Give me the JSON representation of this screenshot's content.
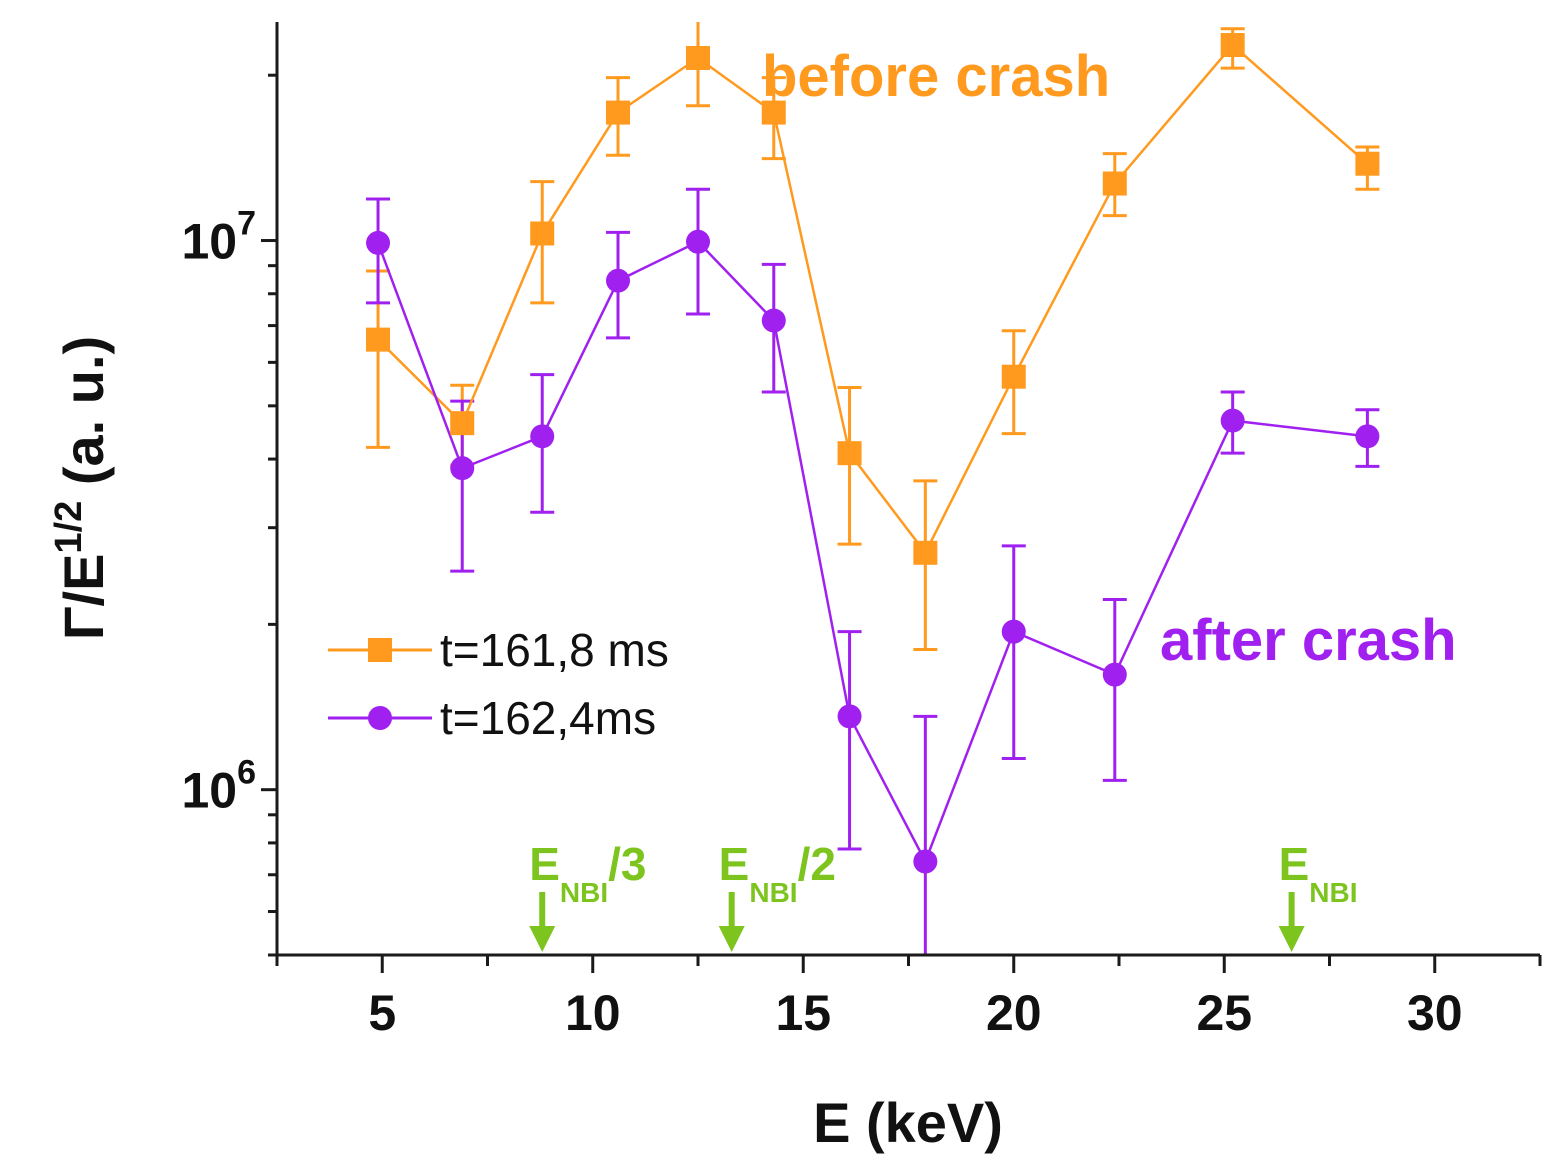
{
  "chart_data": {
    "type": "scatter",
    "xlabel": "E (keV)",
    "ylabel": {
      "base": "Γ/E",
      "sup": "1/2",
      "rest": " (a. u.)"
    },
    "xlim": [
      2.5,
      32.5
    ],
    "ylim": [
      500000,
      25000000
    ],
    "y_scale": "log",
    "x_ticks": [
      5,
      10,
      15,
      20,
      25,
      30
    ],
    "x_tick_labels": [
      "5",
      "10",
      "15",
      "20",
      "25",
      "30"
    ],
    "y_ticks": [
      {
        "value": 1000000,
        "base": "10",
        "exp": "6"
      },
      {
        "value": 10000000,
        "base": "10",
        "exp": "7"
      }
    ],
    "legend_position": "center-left",
    "series": [
      {
        "name": "t=161,8 ms",
        "color": "#FF9A1F",
        "marker": "square",
        "points": [
          {
            "x": 4.9,
            "y": 6600000,
            "lo": 4200000,
            "hi": 8800000
          },
          {
            "x": 6.9,
            "y": 4650000,
            "lo": 3900000,
            "hi": 5450000
          },
          {
            "x": 8.8,
            "y": 10300000,
            "lo": 7700000,
            "hi": 12800000
          },
          {
            "x": 10.6,
            "y": 17100000,
            "lo": 14300000,
            "hi": 19800000
          },
          {
            "x": 12.5,
            "y": 21500000,
            "lo": 17600000,
            "hi": 25600000
          },
          {
            "x": 14.3,
            "y": 17100000,
            "lo": 14100000,
            "hi": 19800000
          },
          {
            "x": 16.1,
            "y": 4100000,
            "lo": 2800000,
            "hi": 5400000
          },
          {
            "x": 17.9,
            "y": 2700000,
            "lo": 1800000,
            "hi": 3650000
          },
          {
            "x": 20.0,
            "y": 5650000,
            "lo": 4450000,
            "hi": 6850000
          },
          {
            "x": 22.4,
            "y": 12700000,
            "lo": 11100000,
            "hi": 14400000
          },
          {
            "x": 25.2,
            "y": 22700000,
            "lo": 20600000,
            "hi": 24300000
          },
          {
            "x": 28.4,
            "y": 13800000,
            "lo": 12400000,
            "hi": 14800000
          }
        ]
      },
      {
        "name": "t=162,4ms",
        "color": "#A020F0",
        "marker": "circle",
        "points": [
          {
            "x": 4.9,
            "y": 9900000,
            "lo": 7700000,
            "hi": 11900000
          },
          {
            "x": 6.9,
            "y": 3850000,
            "lo": 2500000,
            "hi": 5100000
          },
          {
            "x": 8.8,
            "y": 4400000,
            "lo": 3200000,
            "hi": 5700000
          },
          {
            "x": 10.6,
            "y": 8450000,
            "lo": 6650000,
            "hi": 10350000
          },
          {
            "x": 12.5,
            "y": 9950000,
            "lo": 7350000,
            "hi": 12400000
          },
          {
            "x": 14.3,
            "y": 7150000,
            "lo": 5300000,
            "hi": 9050000
          },
          {
            "x": 16.1,
            "y": 1360000,
            "lo": 780000,
            "hi": 1940000
          },
          {
            "x": 17.9,
            "y": 740000,
            "lo": 500000,
            "hi": 1360000
          },
          {
            "x": 20.0,
            "y": 1940000,
            "lo": 1140000,
            "hi": 2780000
          },
          {
            "x": 22.4,
            "y": 1620000,
            "lo": 1040000,
            "hi": 2220000
          },
          {
            "x": 25.2,
            "y": 4700000,
            "lo": 4100000,
            "hi": 5300000
          },
          {
            "x": 28.4,
            "y": 4400000,
            "lo": 3880000,
            "hi": 4920000
          }
        ]
      }
    ],
    "annotations": [
      {
        "text": "before crash",
        "color": "#FF9A1F"
      },
      {
        "text": "after crash",
        "color": "#A020F0"
      }
    ],
    "energy_markers": {
      "color": "#7DC41F",
      "items": [
        {
          "x": 8.8,
          "main": "E",
          "sub": "NBI",
          "suffix": "/3"
        },
        {
          "x": 13.3,
          "main": "E",
          "sub": "NBI",
          "suffix": "/2"
        },
        {
          "x": 26.6,
          "main": "E",
          "sub": "NBI",
          "suffix": ""
        }
      ]
    }
  }
}
